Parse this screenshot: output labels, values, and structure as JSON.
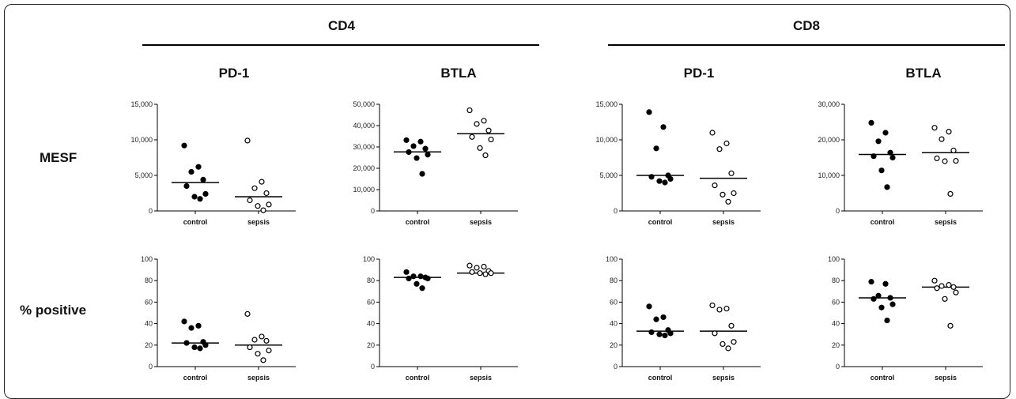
{
  "groups": [
    "CD4",
    "CD8"
  ],
  "markers": [
    "PD-1",
    "BTLA",
    "PD-1",
    "BTLA"
  ],
  "rows": [
    "MESF",
    "% positive"
  ],
  "chart_data": [
    {
      "type": "scatter",
      "group": "CD4",
      "marker": "PD-1",
      "row": "MESF",
      "categories": [
        "control",
        "sepsis"
      ],
      "ylim": [
        0,
        15000
      ],
      "yticks": [
        0,
        5000,
        10000,
        15000
      ],
      "ytick_labels": [
        "0",
        "5,000",
        "10,000",
        "15,000"
      ],
      "series": [
        {
          "category": "control",
          "fill": "filled",
          "median": 4000,
          "values": [
            9200,
            6200,
            5500,
            4400,
            3500,
            2400,
            2000,
            1700
          ]
        },
        {
          "category": "sepsis",
          "fill": "open",
          "median": 2000,
          "values": [
            9900,
            4100,
            3200,
            2500,
            1500,
            900,
            700,
            100
          ]
        }
      ]
    },
    {
      "type": "scatter",
      "group": "CD4",
      "marker": "BTLA",
      "row": "MESF",
      "categories": [
        "control",
        "sepsis"
      ],
      "ylim": [
        0,
        50000
      ],
      "yticks": [
        0,
        10000,
        20000,
        30000,
        40000,
        50000
      ],
      "ytick_labels": [
        "0",
        "10,000",
        "20,000",
        "30,000",
        "40,000",
        "50,000"
      ],
      "series": [
        {
          "category": "control",
          "fill": "filled",
          "median": 27700,
          "values": [
            33200,
            32500,
            30400,
            29200,
            27600,
            26400,
            24800,
            17400
          ]
        },
        {
          "category": "sepsis",
          "fill": "open",
          "median": 36200,
          "values": [
            47200,
            42300,
            40800,
            37700,
            34700,
            33500,
            29500,
            26100
          ]
        }
      ]
    },
    {
      "type": "scatter",
      "group": "CD8",
      "marker": "PD-1",
      "row": "MESF",
      "categories": [
        "control",
        "sepsis"
      ],
      "ylim": [
        0,
        15000
      ],
      "yticks": [
        0,
        5000,
        10000,
        15000
      ],
      "ytick_labels": [
        "0",
        "5,000",
        "10,000",
        "15,000"
      ],
      "series": [
        {
          "category": "control",
          "fill": "filled",
          "median": 5000,
          "values": [
            13900,
            11800,
            8800,
            5000,
            4800,
            4500,
            4200,
            4000
          ]
        },
        {
          "category": "sepsis",
          "fill": "open",
          "median": 4600,
          "values": [
            11000,
            9500,
            8700,
            5300,
            3600,
            2500,
            2300,
            1300
          ]
        }
      ]
    },
    {
      "type": "scatter",
      "group": "CD8",
      "marker": "BTLA",
      "row": "MESF",
      "categories": [
        "control",
        "sepsis"
      ],
      "ylim": [
        0,
        30000
      ],
      "yticks": [
        0,
        10000,
        20000,
        30000
      ],
      "ytick_labels": [
        "0",
        "10,000",
        "20,000",
        "30,000"
      ],
      "series": [
        {
          "category": "control",
          "fill": "filled",
          "median": 15900,
          "values": [
            24800,
            22000,
            19600,
            16400,
            15400,
            15000,
            11400,
            6700
          ]
        },
        {
          "category": "sepsis",
          "fill": "open",
          "median": 16400,
          "values": [
            23400,
            22300,
            20200,
            17000,
            14800,
            14100,
            14000,
            4800
          ]
        }
      ]
    },
    {
      "type": "scatter",
      "group": "CD4",
      "marker": "PD-1",
      "row": "% positive",
      "categories": [
        "control",
        "sepsis"
      ],
      "ylim": [
        0,
        100
      ],
      "yticks": [
        0,
        20,
        40,
        60,
        80,
        100
      ],
      "ytick_labels": [
        "0",
        "20",
        "40",
        "60",
        "80",
        "100"
      ],
      "series": [
        {
          "category": "control",
          "fill": "filled",
          "median": 22,
          "values": [
            42,
            38,
            36,
            23,
            22,
            20,
            18,
            17
          ]
        },
        {
          "category": "sepsis",
          "fill": "open",
          "median": 20,
          "values": [
            49,
            28,
            25,
            24,
            18,
            15,
            12,
            6
          ]
        }
      ]
    },
    {
      "type": "scatter",
      "group": "CD4",
      "marker": "BTLA",
      "row": "% positive",
      "categories": [
        "control",
        "sepsis"
      ],
      "ylim": [
        0,
        100
      ],
      "yticks": [
        0,
        20,
        40,
        60,
        80,
        100
      ],
      "ytick_labels": [
        "0",
        "20",
        "40",
        "60",
        "80",
        "100"
      ],
      "series": [
        {
          "category": "control",
          "fill": "filled",
          "median": 83,
          "values": [
            88,
            84,
            84,
            83,
            82,
            82,
            77,
            73
          ]
        },
        {
          "category": "sepsis",
          "fill": "open",
          "median": 87,
          "values": [
            94,
            93,
            92,
            89,
            88,
            87,
            87,
            86
          ]
        }
      ]
    },
    {
      "type": "scatter",
      "group": "CD8",
      "marker": "PD-1",
      "row": "% positive",
      "categories": [
        "control",
        "sepsis"
      ],
      "ylim": [
        0,
        100
      ],
      "yticks": [
        0,
        20,
        40,
        60,
        80,
        100
      ],
      "ytick_labels": [
        "0",
        "20",
        "40",
        "60",
        "80",
        "100"
      ],
      "series": [
        {
          "category": "control",
          "fill": "filled",
          "median": 33,
          "values": [
            56,
            46,
            44,
            34,
            32,
            31,
            30,
            29
          ]
        },
        {
          "category": "sepsis",
          "fill": "open",
          "median": 33,
          "values": [
            57,
            54,
            53,
            38,
            31,
            23,
            21,
            17
          ]
        }
      ]
    },
    {
      "type": "scatter",
      "group": "CD8",
      "marker": "BTLA",
      "row": "% positive",
      "categories": [
        "control",
        "sepsis"
      ],
      "ylim": [
        0,
        100
      ],
      "yticks": [
        0,
        20,
        40,
        60,
        80,
        100
      ],
      "ytick_labels": [
        "0",
        "20",
        "40",
        "60",
        "80",
        "100"
      ],
      "series": [
        {
          "category": "control",
          "fill": "filled",
          "median": 64,
          "values": [
            79,
            77,
            66,
            64,
            63,
            58,
            55,
            43
          ]
        },
        {
          "category": "sepsis",
          "fill": "open",
          "median": 74,
          "values": [
            80,
            76,
            75,
            74,
            73,
            69,
            63,
            38
          ]
        }
      ]
    }
  ]
}
